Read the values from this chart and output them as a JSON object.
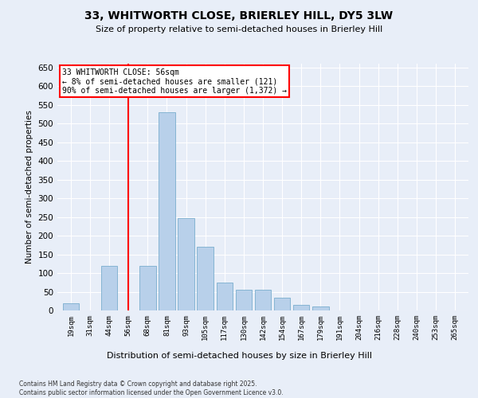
{
  "title": "33, WHITWORTH CLOSE, BRIERLEY HILL, DY5 3LW",
  "subtitle": "Size of property relative to semi-detached houses in Brierley Hill",
  "xlabel": "Distribution of semi-detached houses by size in Brierley Hill",
  "ylabel": "Number of semi-detached properties",
  "categories": [
    "19sqm",
    "31sqm",
    "44sqm",
    "56sqm",
    "68sqm",
    "81sqm",
    "93sqm",
    "105sqm",
    "117sqm",
    "130sqm",
    "142sqm",
    "154sqm",
    "167sqm",
    "179sqm",
    "191sqm",
    "204sqm",
    "216sqm",
    "228sqm",
    "240sqm",
    "253sqm",
    "265sqm"
  ],
  "values": [
    20,
    0,
    120,
    0,
    120,
    530,
    248,
    170,
    75,
    55,
    55,
    35,
    15,
    10,
    0,
    0,
    0,
    0,
    0,
    0,
    0
  ],
  "bar_color": "#b8d0ea",
  "bar_edge_color": "#7aaece",
  "red_line_index": 3,
  "red_line_label": "33 WHITWORTH CLOSE: 56sqm",
  "annotation_line1": "← 8% of semi-detached houses are smaller (121)",
  "annotation_line2": "90% of semi-detached houses are larger (1,372) →",
  "ylim": [
    0,
    660
  ],
  "yticks": [
    0,
    50,
    100,
    150,
    200,
    250,
    300,
    350,
    400,
    450,
    500,
    550,
    600,
    650
  ],
  "background_color": "#e8eef8",
  "grid_color": "#ffffff",
  "footnote1": "Contains HM Land Registry data © Crown copyright and database right 2025.",
  "footnote2": "Contains public sector information licensed under the Open Government Licence v3.0."
}
